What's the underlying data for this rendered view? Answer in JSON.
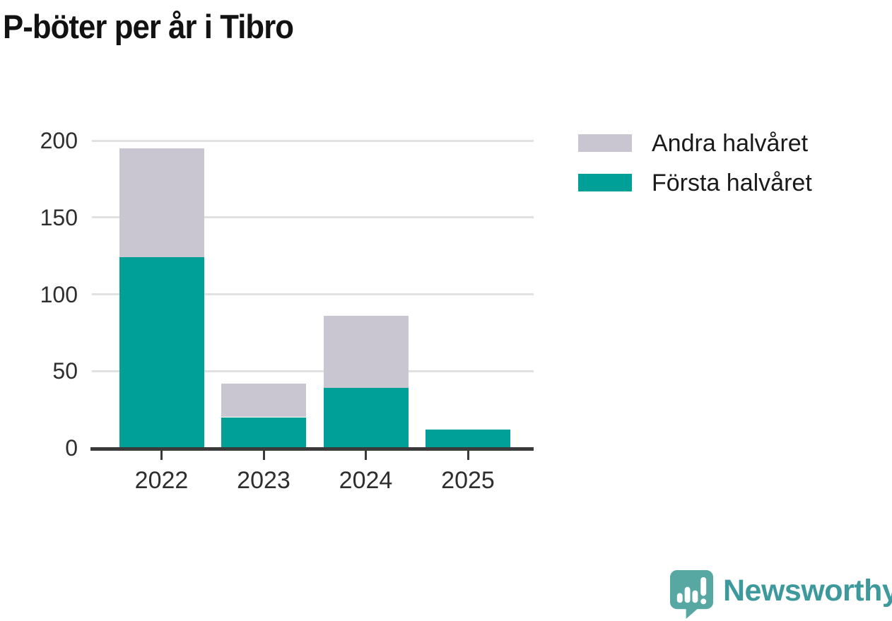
{
  "title": "P-böter per år i Tibro",
  "legend": [
    {
      "label": "Andra halvåret",
      "color": "#c9c6d1"
    },
    {
      "label": "Första halvåret",
      "color": "#00a099"
    }
  ],
  "chart_data": {
    "type": "bar",
    "stacked": true,
    "title": "P-böter per år i Tibro",
    "categories": [
      "2022",
      "2023",
      "2024",
      "2025"
    ],
    "series": [
      {
        "name": "Första halvåret",
        "color": "#00a099",
        "values": [
          124,
          20,
          39,
          12
        ]
      },
      {
        "name": "Andra halvåret",
        "color": "#c9c6d1",
        "values": [
          71,
          22,
          47,
          0
        ]
      }
    ],
    "totals": [
      195,
      42,
      86,
      12
    ],
    "y_ticks": [
      0,
      50,
      100,
      150,
      200
    ],
    "ylim": [
      0,
      200
    ],
    "xlabel": "",
    "ylabel": "",
    "grid": true,
    "legend_position": "top-right"
  },
  "branding": {
    "logo_text": "Newsworthy",
    "logo_text_color": "#3e999c",
    "logo_icon_color": "#57a7a3"
  },
  "colors": {
    "background": "#ffffff",
    "grid": "#e1e1e1",
    "axis": "#3a3a3a",
    "axis_text": "#2e2e2e",
    "title_text": "#121212"
  }
}
